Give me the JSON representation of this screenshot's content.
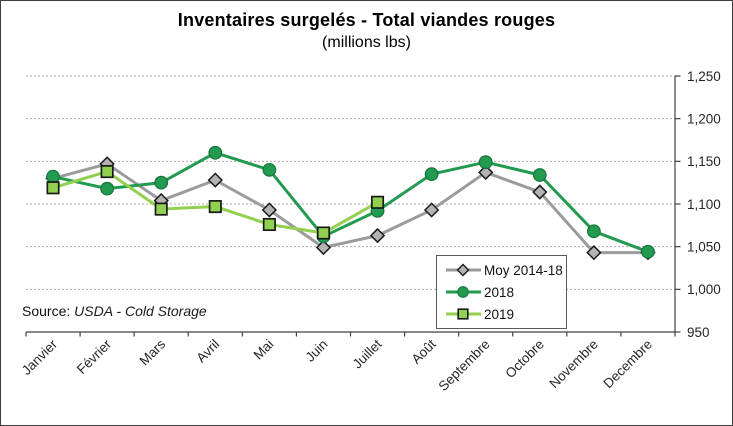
{
  "chart_data": {
    "type": "line",
    "title": "Inventaires surgelés - Total viandes rouges",
    "subtitle": "(millions lbs)",
    "categories": [
      "Janvier",
      "Février",
      "Mars",
      "Avril",
      "Mai",
      "Juin",
      "Juillet",
      "Août",
      "Septembre",
      "Octobre",
      "Novembre",
      "Decembre"
    ],
    "series": [
      {
        "name": "Moy 2014-18",
        "values": [
          1130,
          1147,
          1104,
          1128,
          1093,
          1049,
          1063,
          1093,
          1137,
          1114,
          1043,
          1043
        ],
        "line_color": "#9b9b9b",
        "marker": "diamond",
        "marker_fill": "#b3b3b3",
        "marker_stroke": "#1a1a1a"
      },
      {
        "name": "2018",
        "values": [
          1132,
          1118,
          1125,
          1160,
          1140,
          1062,
          1092,
          1135,
          1149,
          1134,
          1068,
          1044
        ],
        "line_color": "#229a50",
        "marker": "circle",
        "marker_fill": "#229a50",
        "marker_stroke": "#17753b"
      },
      {
        "name": "2019",
        "values": [
          1119,
          1138,
          1094,
          1097,
          1076,
          1066,
          1102,
          null,
          null,
          null,
          null,
          null
        ],
        "line_color": "#92d050",
        "marker": "square",
        "marker_fill": "#92d050",
        "marker_stroke": "#1a1a1a"
      }
    ],
    "ylim": [
      950,
      1250
    ],
    "ytick_step": 50,
    "ytick_labels": [
      "950",
      "1,000",
      "1,050",
      "1,100",
      "1,150",
      "1,200",
      "1,250"
    ],
    "grid": "horizontal dashed",
    "legend_position": "inside-bottom-center",
    "source_prefix": "Source:",
    "source_text": "USDA - Cold Storage"
  }
}
